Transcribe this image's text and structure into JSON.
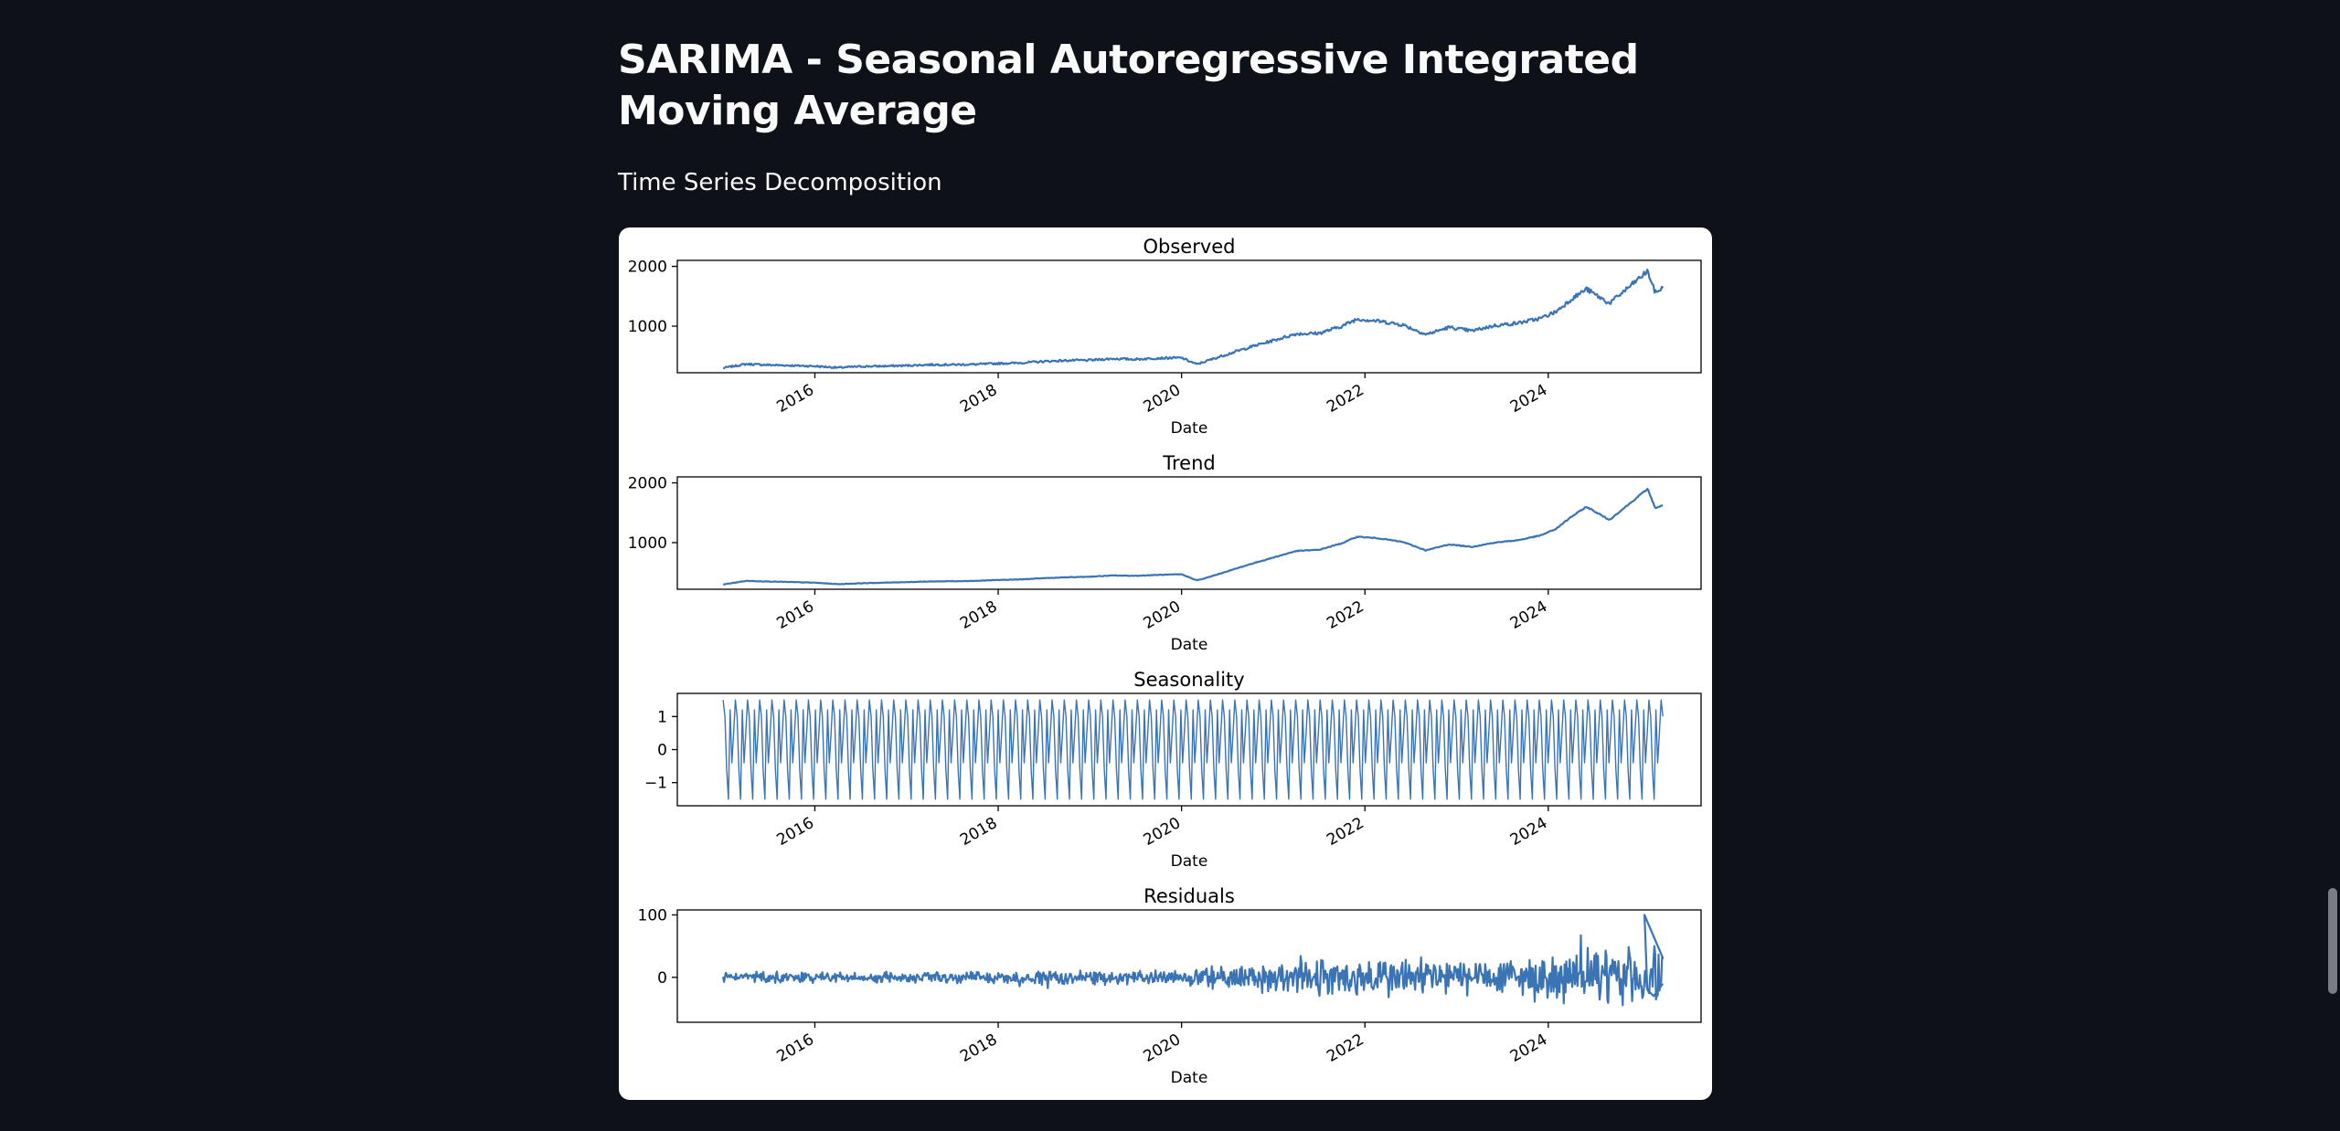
{
  "page": {
    "title": "SARIMA - Seasonal Autoregressive Integrated Moving Average",
    "subheader": "Time Series Decomposition"
  },
  "colors": {
    "background": "#0e1117",
    "text": "#fafafa",
    "line": "#3a74b4",
    "card": "#ffffff"
  },
  "chart_data": [
    {
      "type": "line",
      "title": "Observed",
      "xlabel": "Date",
      "ylabel": "",
      "x_ticks": [
        "2016",
        "2018",
        "2020",
        "2022",
        "2024"
      ],
      "y_ticks": [
        1000,
        2000
      ],
      "xlim": [
        "2014-07",
        "2025-09"
      ],
      "ylim": [
        220,
        2100
      ],
      "grid": false,
      "series": [
        {
          "x": [
            "2015-01",
            "2015-04",
            "2015-07",
            "2015-10",
            "2016-01",
            "2016-04",
            "2016-07",
            "2016-10",
            "2017-01",
            "2017-04",
            "2017-07",
            "2017-10",
            "2018-01",
            "2018-04",
            "2018-07",
            "2018-10",
            "2019-01",
            "2019-04",
            "2019-07",
            "2019-10",
            "2020-01",
            "2020-03",
            "2020-04",
            "2020-07",
            "2020-10",
            "2021-01",
            "2021-04",
            "2021-07",
            "2021-10",
            "2021-12",
            "2022-03",
            "2022-06",
            "2022-09",
            "2022-12",
            "2023-03",
            "2023-06",
            "2023-09",
            "2023-12",
            "2024-02",
            "2024-04",
            "2024-06",
            "2024-09",
            "2024-12",
            "2025-02",
            "2025-03",
            "2025-04"
          ],
          "values": [
            300,
            365,
            350,
            340,
            330,
            305,
            325,
            330,
            340,
            355,
            355,
            360,
            375,
            385,
            410,
            425,
            430,
            455,
            445,
            465,
            470,
            360,
            405,
            530,
            650,
            760,
            870,
            880,
            1000,
            1120,
            1080,
            1020,
            860,
            980,
            920,
            1010,
            1050,
            1130,
            1240,
            1450,
            1620,
            1380,
            1700,
            1920,
            1560,
            1640
          ]
        }
      ]
    },
    {
      "type": "line",
      "title": "Trend",
      "xlabel": "Date",
      "ylabel": "",
      "x_ticks": [
        "2016",
        "2018",
        "2020",
        "2022",
        "2024"
      ],
      "y_ticks": [
        1000,
        2000
      ],
      "xlim": [
        "2014-07",
        "2025-09"
      ],
      "ylim": [
        220,
        2100
      ],
      "grid": false,
      "series": [
        {
          "x": [
            "2015-01",
            "2015-04",
            "2015-07",
            "2015-10",
            "2016-01",
            "2016-04",
            "2016-07",
            "2016-10",
            "2017-01",
            "2017-04",
            "2017-07",
            "2017-10",
            "2018-01",
            "2018-04",
            "2018-07",
            "2018-10",
            "2019-01",
            "2019-04",
            "2019-07",
            "2019-10",
            "2020-01",
            "2020-03",
            "2020-04",
            "2020-07",
            "2020-10",
            "2021-01",
            "2021-04",
            "2021-07",
            "2021-10",
            "2021-12",
            "2022-03",
            "2022-06",
            "2022-09",
            "2022-12",
            "2023-03",
            "2023-06",
            "2023-09",
            "2023-12",
            "2024-02",
            "2024-04",
            "2024-06",
            "2024-09",
            "2024-12",
            "2025-02",
            "2025-03",
            "2025-04"
          ],
          "values": [
            300,
            360,
            350,
            340,
            330,
            305,
            320,
            330,
            340,
            350,
            355,
            360,
            375,
            385,
            405,
            420,
            430,
            450,
            445,
            460,
            470,
            370,
            400,
            520,
            640,
            750,
            860,
            880,
            990,
            1100,
            1070,
            1010,
            870,
            970,
            930,
            1000,
            1040,
            1120,
            1230,
            1430,
            1600,
            1380,
            1690,
            1900,
            1580,
            1620
          ]
        }
      ]
    },
    {
      "type": "line",
      "title": "Seasonality",
      "xlabel": "Date",
      "ylabel": "",
      "x_ticks": [
        "2016",
        "2018",
        "2020",
        "2022",
        "2024"
      ],
      "y_ticks": [
        -1,
        0,
        1
      ],
      "xlim": [
        "2014-07",
        "2025-09"
      ],
      "ylim": [
        -1.7,
        1.7
      ],
      "grid": false,
      "series": [
        {
          "pattern": "weekly cycle repeating 2015-01 to 2025-04",
          "cycle_values": [
            1.5,
            1.0,
            -0.6,
            -1.5,
            1.2,
            -0.4,
            0.5
          ],
          "min": -1.5,
          "max": 1.5
        }
      ]
    },
    {
      "type": "line",
      "title": "Residuals",
      "xlabel": "Date",
      "ylabel": "",
      "x_ticks": [
        "2016",
        "2018",
        "2020",
        "2022",
        "2024"
      ],
      "y_ticks": [
        0,
        100
      ],
      "xlim": [
        "2014-07",
        "2025-09"
      ],
      "ylim": [
        -72,
        108
      ],
      "grid": false,
      "series": [
        {
          "x": [
            "2015-01",
            "2015-07",
            "2016-01",
            "2016-07",
            "2017-01",
            "2017-07",
            "2018-01",
            "2018-07",
            "2019-01",
            "2019-07",
            "2020-01",
            "2020-07",
            "2021-01",
            "2021-07",
            "2022-01",
            "2022-07",
            "2023-01",
            "2023-07",
            "2024-01",
            "2024-07",
            "2025-01",
            "2025-03"
          ],
          "amplitude": [
            10,
            12,
            10,
            10,
            10,
            11,
            12,
            13,
            13,
            14,
            15,
            22,
            28,
            33,
            38,
            40,
            34,
            36,
            42,
            50,
            55,
            60
          ],
          "min": -62,
          "max": 100
        }
      ]
    }
  ]
}
